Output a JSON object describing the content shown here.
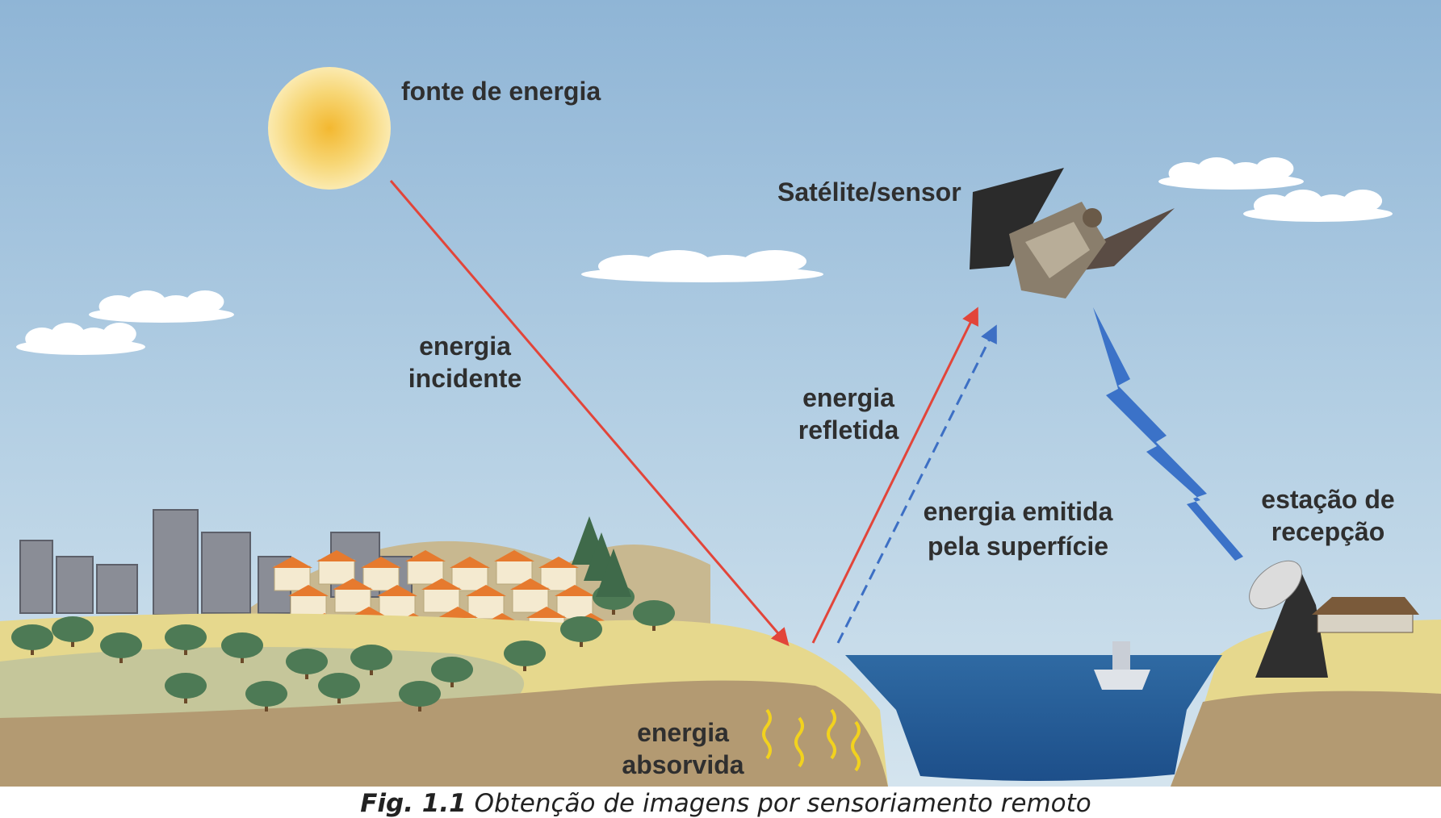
{
  "labels": {
    "source": "fonte de energia",
    "satellite": "Satélite/sensor",
    "incident": [
      "energia",
      "incidente"
    ],
    "reflected": [
      "energia",
      "refletida"
    ],
    "emitted": [
      "energia emitida",
      "pela superfície"
    ],
    "station": [
      "estação de",
      "recepção"
    ],
    "absorbed": [
      "energia",
      "absorvida"
    ]
  },
  "caption": {
    "number": "Fig. 1.1",
    "text": "Obtenção de imagens por sensoriamento remoto"
  }
}
